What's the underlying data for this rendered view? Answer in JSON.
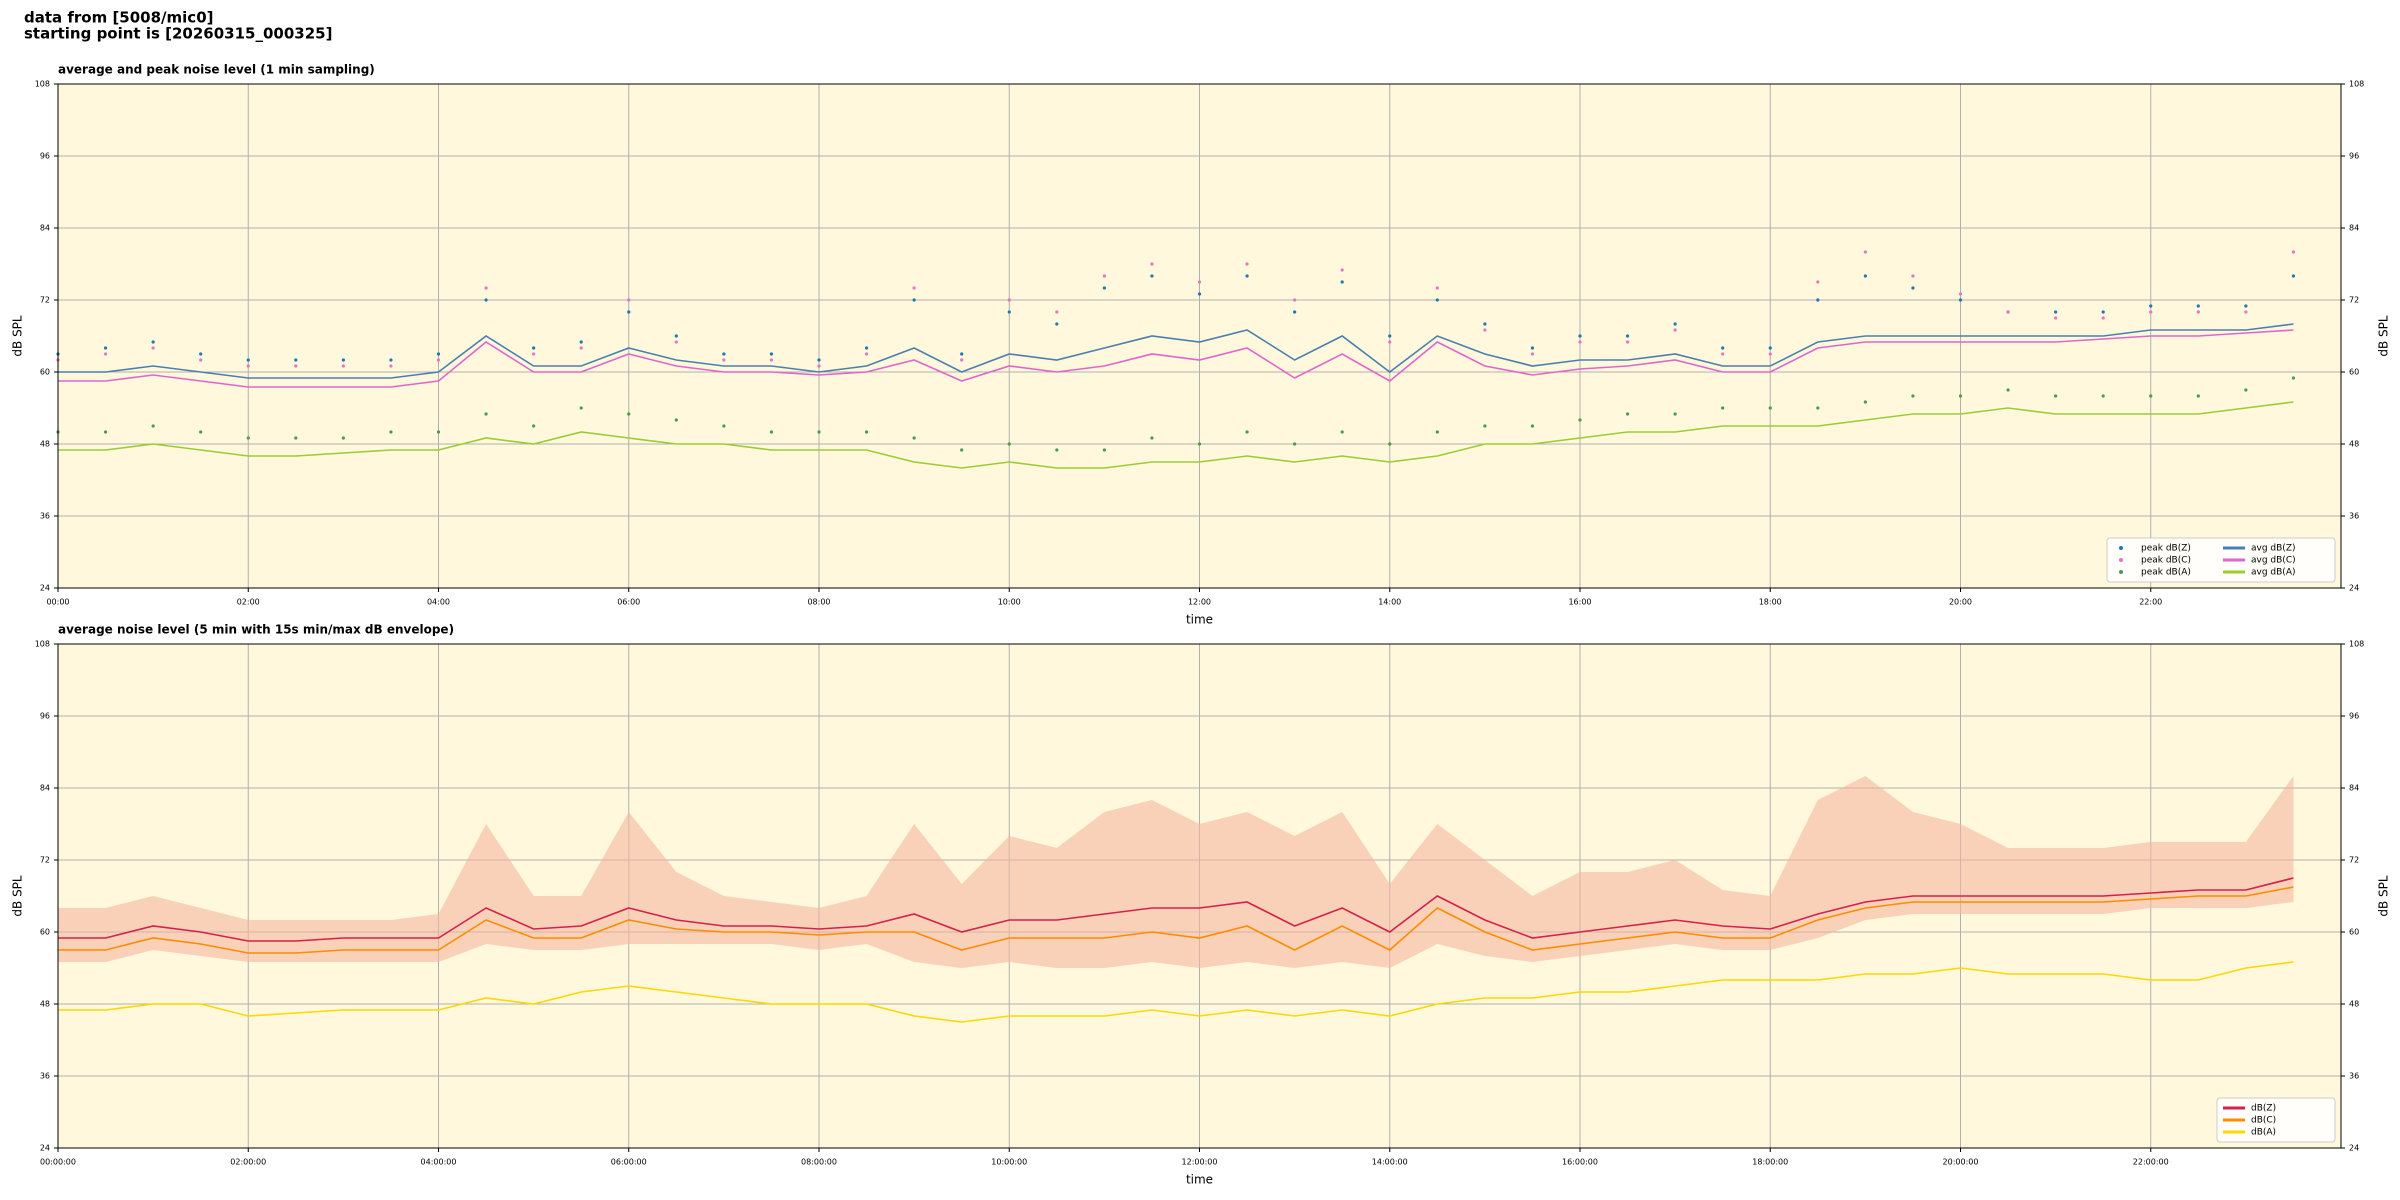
{
  "header": {
    "line1": "data from [5008/mic0]",
    "line2": "starting point is [20260315_000325]"
  },
  "chart_data": [
    {
      "type": "line",
      "title": "average and peak noise level (1 min sampling)",
      "xlabel": "time",
      "ylabel": "dB SPL",
      "xlim": [
        0,
        24
      ],
      "ylim": [
        24,
        108
      ],
      "grid": true,
      "legend": "lower right",
      "background": "#fff8dc",
      "xticks": [
        {
          "value": 0,
          "label": "00:00"
        },
        {
          "value": 2,
          "label": "02:00"
        },
        {
          "value": 4,
          "label": "04:00"
        },
        {
          "value": 6,
          "label": "06:00"
        },
        {
          "value": 8,
          "label": "08:00"
        },
        {
          "value": 10,
          "label": "10:00"
        },
        {
          "value": 12,
          "label": "12:00"
        },
        {
          "value": 14,
          "label": "14:00"
        },
        {
          "value": 16,
          "label": "16:00"
        },
        {
          "value": 18,
          "label": "18:00"
        },
        {
          "value": 20,
          "label": "20:00"
        },
        {
          "value": 22,
          "label": "22:00"
        }
      ],
      "yticks": [
        24,
        36,
        48,
        60,
        72,
        84,
        96,
        108
      ],
      "x": [
        0,
        0.5,
        1,
        1.5,
        2,
        2.5,
        3,
        3.5,
        4,
        4.5,
        5,
        5.5,
        6,
        6.5,
        7,
        7.5,
        8,
        8.5,
        9,
        9.5,
        10,
        10.5,
        11,
        11.5,
        12,
        12.5,
        13,
        13.5,
        14,
        14.5,
        15,
        15.5,
        16,
        16.5,
        17,
        17.5,
        18,
        18.5,
        19,
        19.5,
        20,
        20.5,
        21,
        21.5,
        22,
        22.5,
        23,
        23.5
      ],
      "series": [
        {
          "name": "peak dB(Z)",
          "style": "dots",
          "color": "#1f77b4",
          "values": [
            63,
            64,
            65,
            63,
            62,
            62,
            62,
            62,
            63,
            72,
            64,
            65,
            70,
            66,
            63,
            63,
            62,
            64,
            72,
            63,
            70,
            68,
            74,
            76,
            73,
            76,
            70,
            75,
            66,
            72,
            68,
            64,
            66,
            66,
            68,
            64,
            64,
            72,
            76,
            74,
            72,
            70,
            70,
            70,
            71,
            71,
            71,
            76
          ]
        },
        {
          "name": "peak dB(C)",
          "style": "dots",
          "color": "#e377c2",
          "values": [
            62,
            63,
            64,
            62,
            61,
            61,
            61,
            61,
            62,
            74,
            63,
            64,
            72,
            65,
            62,
            62,
            61,
            63,
            74,
            62,
            72,
            70,
            76,
            78,
            75,
            78,
            72,
            77,
            65,
            74,
            67,
            63,
            65,
            65,
            67,
            63,
            63,
            75,
            80,
            76,
            73,
            70,
            69,
            69,
            70,
            70,
            70,
            80
          ]
        },
        {
          "name": "peak dB(A)",
          "style": "dots",
          "color": "#4c9a4c",
          "values": [
            50,
            50,
            51,
            50,
            49,
            49,
            49,
            50,
            50,
            53,
            51,
            54,
            53,
            52,
            51,
            50,
            50,
            50,
            49,
            47,
            48,
            47,
            47,
            49,
            48,
            50,
            48,
            50,
            48,
            50,
            51,
            51,
            52,
            53,
            53,
            54,
            54,
            54,
            55,
            56,
            56,
            57,
            56,
            56,
            56,
            56,
            57,
            59
          ]
        },
        {
          "name": "avg dB(Z)",
          "style": "line",
          "color": "#4a7fb0",
          "values": [
            60,
            60,
            61,
            60,
            59,
            59,
            59,
            59,
            60,
            66,
            61,
            61,
            64,
            62,
            61,
            61,
            60,
            61,
            64,
            60,
            63,
            62,
            64,
            66,
            65,
            67,
            62,
            66,
            60,
            66,
            63,
            61,
            62,
            62,
            63,
            61,
            61,
            65,
            66,
            66,
            66,
            66,
            66,
            66,
            67,
            67,
            67,
            68
          ]
        },
        {
          "name": "avg dB(C)",
          "style": "line",
          "color": "#e066cc",
          "values": [
            58.5,
            58.5,
            59.5,
            58.5,
            57.5,
            57.5,
            57.5,
            57.5,
            58.5,
            65,
            60,
            60,
            63,
            61,
            60,
            60,
            59.5,
            60,
            62,
            58.5,
            61,
            60,
            61,
            63,
            62,
            64,
            59,
            63,
            58.5,
            65,
            61,
            59.5,
            60.5,
            61,
            62,
            60,
            60,
            64,
            65,
            65,
            65,
            65,
            65,
            65.5,
            66,
            66,
            66.5,
            67
          ]
        },
        {
          "name": "avg dB(A)",
          "style": "line",
          "color": "#9acd32",
          "values": [
            47,
            47,
            48,
            47,
            46,
            46,
            46.5,
            47,
            47,
            49,
            48,
            50,
            49,
            48,
            48,
            47,
            47,
            47,
            45,
            44,
            45,
            44,
            44,
            45,
            45,
            46,
            45,
            46,
            45,
            46,
            48,
            48,
            49,
            50,
            50,
            51,
            51,
            51,
            52,
            53,
            53,
            54,
            53,
            53,
            53,
            53,
            54,
            55
          ]
        }
      ]
    },
    {
      "type": "line",
      "title": "average noise level (5 min with 15s min/max dB envelope)",
      "xlabel": "time",
      "ylabel": "dB SPL",
      "xlim": [
        0,
        24
      ],
      "ylim": [
        24,
        108
      ],
      "grid": true,
      "legend": "lower right",
      "background": "#fff8dc",
      "xticks": [
        {
          "value": 0,
          "label": "00:00:00"
        },
        {
          "value": 2,
          "label": "02:00:00"
        },
        {
          "value": 4,
          "label": "04:00:00"
        },
        {
          "value": 6,
          "label": "06:00:00"
        },
        {
          "value": 8,
          "label": "08:00:00"
        },
        {
          "value": 10,
          "label": "10:00:00"
        },
        {
          "value": 12,
          "label": "12:00:00"
        },
        {
          "value": 14,
          "label": "14:00:00"
        },
        {
          "value": 16,
          "label": "16:00:00"
        },
        {
          "value": 18,
          "label": "18:00:00"
        },
        {
          "value": 20,
          "label": "20:00:00"
        },
        {
          "value": 22,
          "label": "22:00:00"
        }
      ],
      "yticks": [
        24,
        36,
        48,
        60,
        72,
        84,
        96,
        108
      ],
      "x": [
        0,
        0.5,
        1,
        1.5,
        2,
        2.5,
        3,
        3.5,
        4,
        4.5,
        5,
        5.5,
        6,
        6.5,
        7,
        7.5,
        8,
        8.5,
        9,
        9.5,
        10,
        10.5,
        11,
        11.5,
        12,
        12.5,
        13,
        13.5,
        14,
        14.5,
        15,
        15.5,
        16,
        16.5,
        17,
        17.5,
        18,
        18.5,
        19,
        19.5,
        20,
        20.5,
        21,
        21.5,
        22,
        22.5,
        23,
        23.5
      ],
      "envelope": {
        "color": "#f4b8a0",
        "low": [
          55,
          55,
          57,
          56,
          55,
          55,
          55,
          55,
          55,
          58,
          57,
          57,
          58,
          58,
          58,
          58,
          57,
          58,
          55,
          54,
          55,
          54,
          54,
          55,
          54,
          55,
          54,
          55,
          54,
          58,
          56,
          55,
          56,
          57,
          58,
          57,
          57,
          59,
          62,
          63,
          63,
          63,
          63,
          63,
          64,
          64,
          64,
          65
        ],
        "high": [
          64,
          64,
          66,
          64,
          62,
          62,
          62,
          62,
          63,
          78,
          66,
          66,
          80,
          70,
          66,
          65,
          64,
          66,
          78,
          68,
          76,
          74,
          80,
          82,
          78,
          80,
          76,
          80,
          68,
          78,
          72,
          66,
          70,
          70,
          72,
          67,
          66,
          82,
          86,
          80,
          78,
          74,
          74,
          74,
          75,
          75,
          75,
          86
        ]
      },
      "series": [
        {
          "name": "dB(Z)",
          "style": "line",
          "color": "#d6204c",
          "values": [
            59,
            59,
            61,
            60,
            58.5,
            58.5,
            59,
            59,
            59,
            64,
            60.5,
            61,
            64,
            62,
            61,
            61,
            60.5,
            61,
            63,
            60,
            62,
            62,
            63,
            64,
            64,
            65,
            61,
            64,
            60,
            66,
            62,
            59,
            60,
            61,
            62,
            61,
            60.5,
            63,
            65,
            66,
            66,
            66,
            66,
            66,
            66.5,
            67,
            67,
            69
          ]
        },
        {
          "name": "dB(C)",
          "style": "line",
          "color": "#ff8c00",
          "values": [
            57,
            57,
            59,
            58,
            56.5,
            56.5,
            57,
            57,
            57,
            62,
            59,
            59,
            62,
            60.5,
            60,
            60,
            59.5,
            60,
            60,
            57,
            59,
            59,
            59,
            60,
            59,
            61,
            57,
            61,
            57,
            64,
            60,
            57,
            58,
            59,
            60,
            59,
            59,
            62,
            64,
            65,
            65,
            65,
            65,
            65,
            65.5,
            66,
            66,
            67.5
          ]
        },
        {
          "name": "dB(A)",
          "style": "line",
          "color": "#ffd700",
          "values": [
            47,
            47,
            48,
            48,
            46,
            46.5,
            47,
            47,
            47,
            49,
            48,
            50,
            51,
            50,
            49,
            48,
            48,
            48,
            46,
            45,
            46,
            46,
            46,
            47,
            46,
            47,
            46,
            47,
            46,
            48,
            49,
            49,
            50,
            50,
            51,
            52,
            52,
            52,
            53,
            53,
            54,
            53,
            53,
            53,
            52,
            52,
            54,
            55
          ]
        }
      ]
    }
  ]
}
